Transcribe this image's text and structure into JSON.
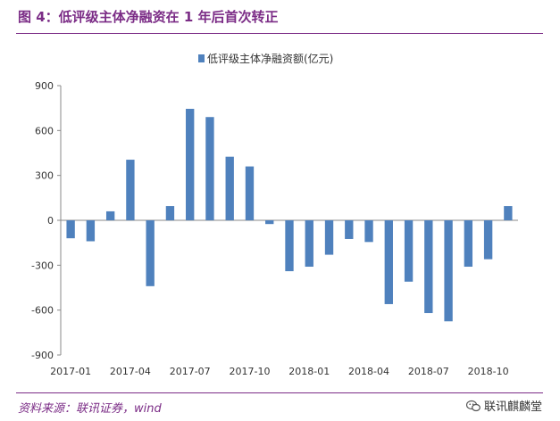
{
  "header": {
    "title": "图 4：低评级主体净融资在 1 年后首次转正"
  },
  "footer": {
    "source": "资料来源：联讯证券，wind",
    "brand": "联讯麒麟堂"
  },
  "colors": {
    "accent": "#7b2c86",
    "bar": "#4f81bd"
  },
  "chart_data": {
    "type": "bar",
    "title": "",
    "legend": "低评级主体净融资额(亿元)",
    "legend_position": "top-center",
    "xlabel": "",
    "ylabel": "",
    "ylim": [
      -900,
      900
    ],
    "yticks": [
      -900,
      -600,
      -300,
      0,
      300,
      600,
      900
    ],
    "x_tick_labels": [
      "2017-01",
      "2017-04",
      "2017-07",
      "2017-10",
      "2018-01",
      "2018-04",
      "2018-07",
      "2018-10"
    ],
    "x_tick_indices": [
      0,
      3,
      6,
      9,
      12,
      15,
      18,
      21
    ],
    "categories": [
      "2017-01",
      "2017-02",
      "2017-03",
      "2017-04",
      "2017-05",
      "2017-06",
      "2017-07",
      "2017-08",
      "2017-09",
      "2017-10",
      "2017-11",
      "2017-12",
      "2018-01",
      "2018-02",
      "2018-03",
      "2018-04",
      "2018-05",
      "2018-06",
      "2018-07",
      "2018-08",
      "2018-09",
      "2018-10",
      "2018-11"
    ],
    "series": [
      {
        "name": "低评级主体净融资额(亿元)",
        "values": [
          -120,
          -140,
          60,
          405,
          -440,
          95,
          745,
          690,
          425,
          360,
          -25,
          -340,
          -310,
          -230,
          -125,
          -145,
          -560,
          -410,
          -620,
          -675,
          -310,
          -260,
          95
        ]
      }
    ],
    "grid": false
  }
}
